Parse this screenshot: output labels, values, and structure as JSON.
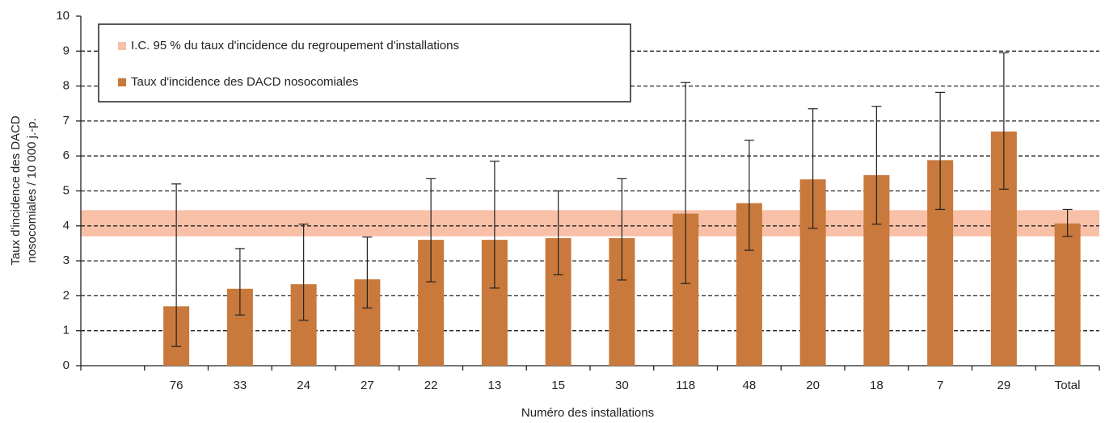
{
  "chart_data": {
    "type": "bar",
    "categories": [
      null,
      "76",
      "33",
      "24",
      "27",
      "22",
      "13",
      "15",
      "30",
      "118",
      "48",
      "20",
      "18",
      "7",
      "29",
      "Total"
    ],
    "series": [
      {
        "name": "Taux d'incidence des DACD nosocomiales",
        "color": "#c8793b",
        "values": [
          null,
          1.7,
          2.2,
          2.33,
          2.47,
          3.6,
          3.6,
          3.65,
          3.65,
          4.35,
          4.65,
          5.33,
          5.45,
          5.88,
          6.7,
          4.07
        ],
        "lower": [
          null,
          0.55,
          1.45,
          1.3,
          1.65,
          2.4,
          2.22,
          2.6,
          2.45,
          2.35,
          3.3,
          3.93,
          4.05,
          4.47,
          5.05,
          3.7
        ],
        "upper": [
          null,
          5.2,
          3.35,
          4.05,
          3.68,
          5.35,
          5.85,
          5.0,
          5.35,
          8.1,
          6.45,
          7.35,
          7.42,
          7.82,
          8.95,
          4.47
        ]
      }
    ],
    "band": {
      "name": "I.C. 95 % du taux d'incidence du regroupement d'installations",
      "color": "#f9c0a8",
      "low": 3.7,
      "high": 4.45
    },
    "x_label": "Numéro des installations",
    "y_label": [
      "Taux d'incidence des DACD",
      "nosocomiales / 10 000 j.-p."
    ],
    "ylim": [
      0,
      10
    ],
    "yticks": [
      0,
      1,
      2,
      3,
      4,
      5,
      6,
      7,
      8,
      9,
      10
    ],
    "grid": true,
    "legend": "upper left"
  }
}
